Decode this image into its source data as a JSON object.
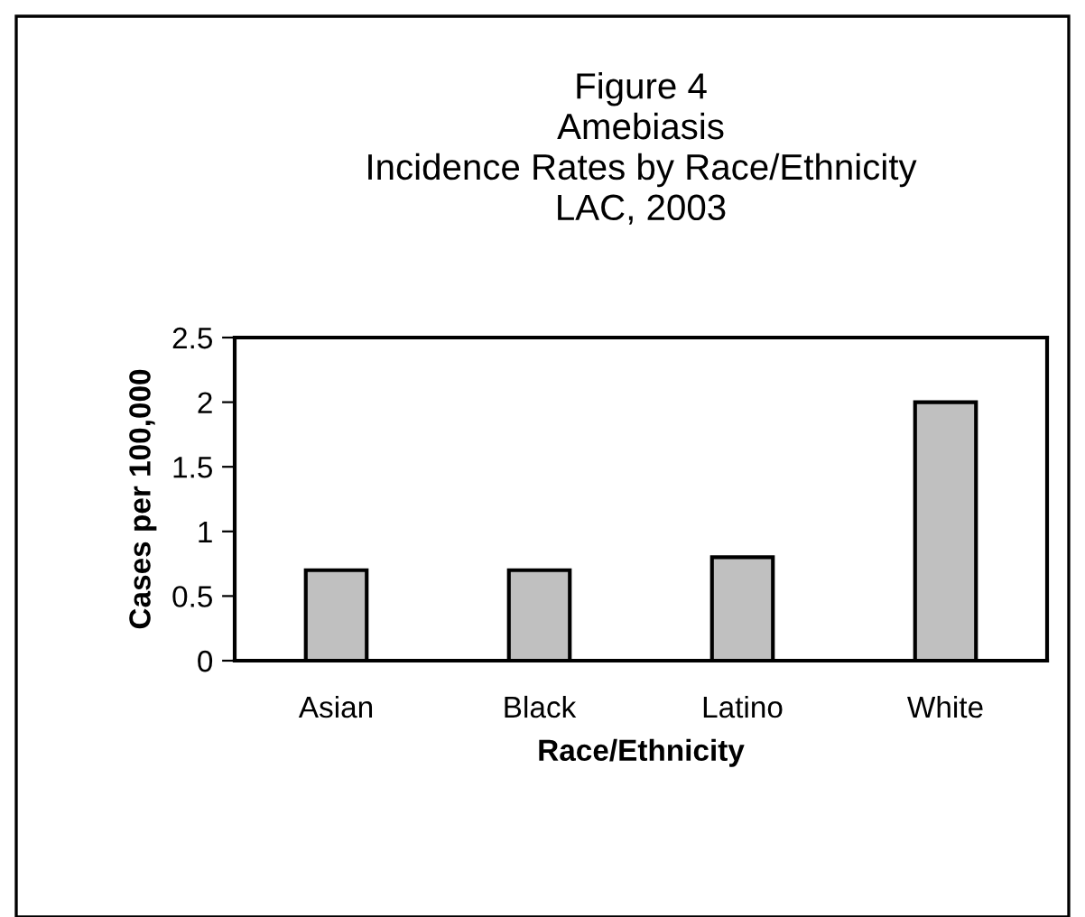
{
  "chart_data": {
    "type": "bar",
    "title": "Figure 4\nAmebiasis\nIncidence Rates by Race/Ethnicity\nLAC, 2003",
    "xlabel": "Race/Ethnicity",
    "ylabel": "Cases per 100,000",
    "categories": [
      "Asian",
      "Black",
      "Latino",
      "White"
    ],
    "values": [
      0.7,
      0.7,
      0.8,
      2.0
    ],
    "color": "#c0c0c0",
    "ylim": [
      0,
      2.5
    ],
    "yticks": [
      0,
      0.5,
      1,
      1.5,
      2,
      2.5
    ],
    "grid": false,
    "legend": false
  }
}
